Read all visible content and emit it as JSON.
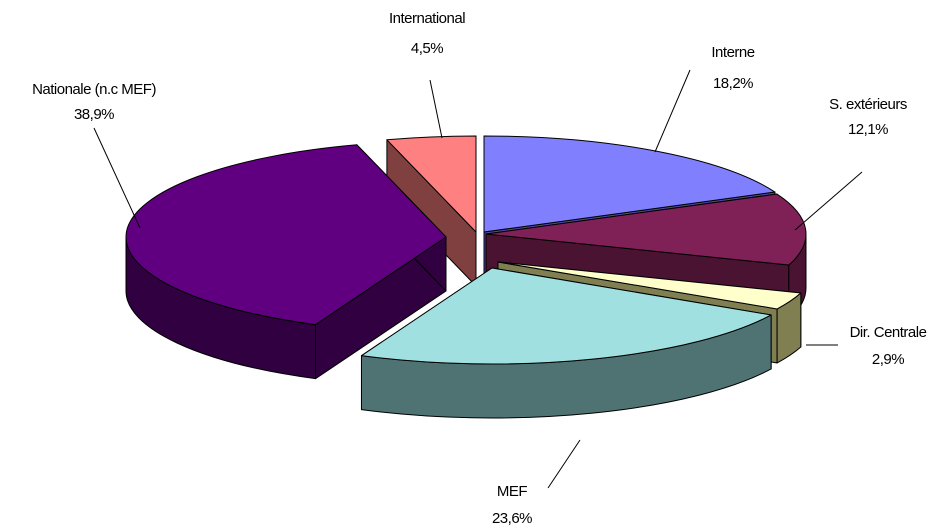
{
  "chart_data": {
    "type": "pie",
    "variant": "3d-exploded",
    "title": "",
    "slices": [
      {
        "name": "Interne",
        "value": 18.2,
        "value_label": "18,2%",
        "color": "#8080ff",
        "side_color": "#4a4a99"
      },
      {
        "name": "S. extérieurs",
        "value": 12.1,
        "value_label": "12,1%",
        "color": "#7f2156",
        "side_color": "#4a1332"
      },
      {
        "name": "Dir. Centrale",
        "value": 2.9,
        "value_label": "2,9%",
        "color": "#ffffcc",
        "side_color": "#7f7f52"
      },
      {
        "name": "MEF",
        "value": 23.6,
        "value_label": "23,6%",
        "color": "#a0e0e0",
        "side_color": "#4f7272"
      },
      {
        "name": "Nationale (n.c MEF)",
        "value": 38.9,
        "value_label": "38,9%",
        "color": "#600080",
        "side_color": "#300040"
      },
      {
        "name": "International",
        "value": 4.5,
        "value_label": "4,5%",
        "color": "#ff8080",
        "side_color": "#804040"
      }
    ]
  }
}
